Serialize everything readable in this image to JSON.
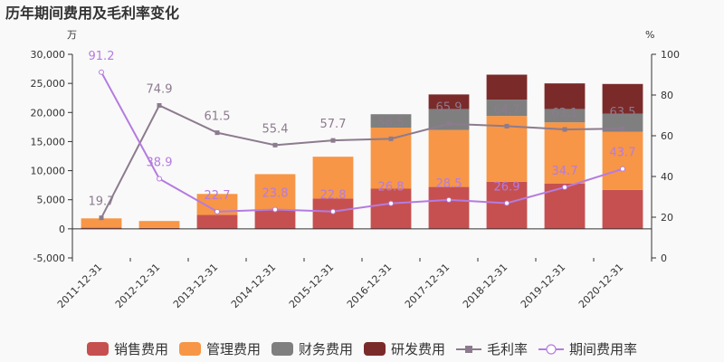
{
  "chart_data": {
    "type": "bar",
    "title": "历年期间费用及毛利率变化",
    "left_unit": "万",
    "right_unit": "%",
    "categories": [
      "2011-12-31",
      "2012-12-31",
      "2013-12-31",
      "2014-12-31",
      "2015-12-31",
      "2016-12-31",
      "2017-12-31",
      "2018-12-31",
      "2019-12-31",
      "2020-12-31"
    ],
    "left_axis": {
      "min": -5000,
      "max": 30000,
      "step": 5000,
      "tick_labels": [
        "-5,000",
        "0",
        "5,000",
        "10,000",
        "15,000",
        "20,000",
        "25,000",
        "30,000"
      ]
    },
    "right_axis": {
      "min": 0,
      "max": 100,
      "step": 20,
      "tick_labels": [
        "0",
        "20",
        "40",
        "60",
        "80",
        "100"
      ]
    },
    "bar_series": [
      {
        "name": "销售费用",
        "color": "#c6504f",
        "values": [
          200,
          150,
          2400,
          3200,
          5200,
          6900,
          7200,
          8100,
          7800,
          6700
        ]
      },
      {
        "name": "管理费用",
        "color": "#f79646",
        "values": [
          1600,
          1200,
          3600,
          6200,
          7200,
          10500,
          9800,
          11300,
          10500,
          10000
        ]
      },
      {
        "name": "财务费用",
        "color": "#7f7f7f",
        "values": [
          0,
          0,
          0,
          0,
          0,
          2300,
          3600,
          2800,
          2300,
          3100
        ]
      },
      {
        "name": "研发费用",
        "color": "#7b2a2a",
        "values": [
          0,
          0,
          0,
          0,
          0,
          0,
          2500,
          4300,
          4400,
          5100
        ]
      }
    ],
    "line_series": [
      {
        "name": "毛利率",
        "color": "#8c7b8e",
        "values": [
          19.7,
          74.9,
          61.5,
          55.4,
          57.7,
          58.5,
          65.9,
          64.7,
          63.1,
          63.5
        ],
        "labels": [
          "19.7",
          "74.9",
          "61.5",
          "55.4",
          "57.7",
          "58.5",
          "65.9",
          "64.7",
          "63.1",
          "63.5"
        ]
      },
      {
        "name": "期间费用率",
        "color": "#b57be0",
        "values": [
          91.2,
          38.9,
          22.7,
          23.8,
          22.8,
          26.8,
          28.5,
          26.9,
          34.7,
          43.7
        ],
        "labels": [
          "91.2",
          "38.9",
          "22.7",
          "23.8",
          "22.8",
          "26.8",
          "28.5",
          "26.9",
          "34.7",
          "43.7"
        ]
      }
    ],
    "legend_position": "bottom"
  }
}
